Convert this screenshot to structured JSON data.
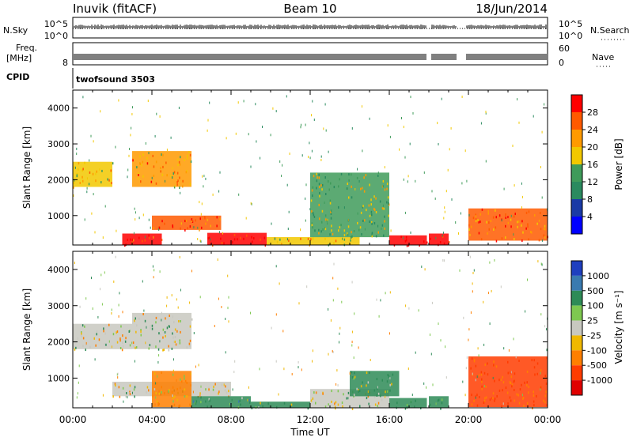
{
  "header": {
    "station": "Inuvik (fitACF)",
    "beam": "Beam 10",
    "date": "18/Jun/2014"
  },
  "strips": {
    "nsky_label": "N.Sky",
    "nsky_ticks": [
      "10^5",
      "10^0"
    ],
    "nsearch_label": "N.Search",
    "nsearch_ticks": [
      "10^5",
      "10^0"
    ],
    "freq_label": "Freq.",
    "freq_unit": "[MHz]",
    "freq_ticks": [
      "8"
    ],
    "nave_label": "Nave",
    "nave_ticks": [
      "60",
      "0"
    ],
    "cpid_label": "CPID",
    "cpid_value": "twofsound 3503"
  },
  "panels": {
    "ylabel": "Slant Range [km]",
    "yticks": [
      "4000",
      "3000",
      "2000",
      "1000"
    ],
    "xlabel": "Time UT",
    "xticks": [
      "00:00",
      "04:00",
      "08:00",
      "12:00",
      "16:00",
      "20:00",
      "00:00"
    ]
  },
  "power_scale": {
    "label": "Power [dB]",
    "ticks": [
      "28",
      "24",
      "20",
      "16",
      "12",
      "8",
      "4"
    ],
    "colors": [
      "#ff0000",
      "#ff5a00",
      "#ff9a00",
      "#f2c800",
      "#3f9b5a",
      "#2a8a5f",
      "#1a3aa6",
      "#0000ff"
    ]
  },
  "velocity_scale": {
    "label": "Velocity [m s⁻¹]",
    "ticks": [
      "1000",
      "500",
      "100",
      "25",
      "-25",
      "-100",
      "-500",
      "-1000"
    ],
    "colors": [
      "#1f3fbf",
      "#3a7ab0",
      "#2e8b57",
      "#7ec850",
      "#c8c8c0",
      "#f0b800",
      "#ff7f00",
      "#ff3c00",
      "#e00000"
    ]
  },
  "chart_data": [
    {
      "type": "heatmap",
      "title": "Beam 10",
      "xlabel": "Time UT",
      "ylabel": "Slant Range [km]",
      "x_range": [
        "00:00",
        "24:00"
      ],
      "ylim": [
        180,
        4500
      ],
      "colorbar": "Power [dB]",
      "colorbar_ticks": [
        4,
        8,
        12,
        16,
        20,
        24,
        28
      ],
      "regions": [
        {
          "t": [
            2.5,
            4.5
          ],
          "r": [
            180,
            500
          ],
          "value": 28
        },
        {
          "t": [
            6.8,
            9.8
          ],
          "r": [
            180,
            520
          ],
          "value": 28
        },
        {
          "t": [
            9.8,
            14.5
          ],
          "r": [
            180,
            400
          ],
          "value": 16
        },
        {
          "t": [
            16.0,
            17.9
          ],
          "r": [
            180,
            450
          ],
          "value": 28
        },
        {
          "t": [
            18.0,
            19.0
          ],
          "r": [
            180,
            500
          ],
          "value": 28
        },
        {
          "t": [
            20.0,
            24.0
          ],
          "r": [
            300,
            1200
          ],
          "value": 22
        },
        {
          "t": [
            0.0,
            2.0
          ],
          "r": [
            1800,
            2500
          ],
          "value": 16
        },
        {
          "t": [
            3.0,
            6.0
          ],
          "r": [
            1800,
            2800
          ],
          "value": 18
        },
        {
          "t": [
            4.0,
            7.5
          ],
          "r": [
            600,
            1000
          ],
          "value": 24
        },
        {
          "t": [
            12.0,
            16.0
          ],
          "r": [
            400,
            2200
          ],
          "value": 12
        }
      ]
    },
    {
      "type": "heatmap",
      "title": "",
      "xlabel": "Time UT",
      "ylabel": "Slant Range [km]",
      "x_range": [
        "00:00",
        "24:00"
      ],
      "ylim": [
        180,
        4500
      ],
      "colorbar": "Velocity [m s⁻¹]",
      "colorbar_ticks": [
        1000,
        500,
        100,
        25,
        -25,
        -100,
        -500,
        -1000
      ],
      "regions": [
        {
          "t": [
            0.0,
            3.0
          ],
          "r": [
            1800,
            2500
          ],
          "value": 0
        },
        {
          "t": [
            3.0,
            6.0
          ],
          "r": [
            1800,
            2800
          ],
          "value": 0
        },
        {
          "t": [
            2.0,
            8.0
          ],
          "r": [
            500,
            900
          ],
          "value": 0
        },
        {
          "t": [
            4.0,
            6.0
          ],
          "r": [
            200,
            1200
          ],
          "value": -100
        },
        {
          "t": [
            6.0,
            9.0
          ],
          "r": [
            180,
            500
          ],
          "value": 200
        },
        {
          "t": [
            9.0,
            12.0
          ],
          "r": [
            180,
            350
          ],
          "value": 100
        },
        {
          "t": [
            12.0,
            16.0
          ],
          "r": [
            180,
            700
          ],
          "value": 0
        },
        {
          "t": [
            16.0,
            17.9
          ],
          "r": [
            180,
            450
          ],
          "value": 200
        },
        {
          "t": [
            18.0,
            19.0
          ],
          "r": [
            180,
            500
          ],
          "value": 100
        },
        {
          "t": [
            20.0,
            24.0
          ],
          "r": [
            200,
            1600
          ],
          "value": -300
        },
        {
          "t": [
            14.0,
            16.5
          ],
          "r": [
            500,
            1200
          ],
          "value": 100
        }
      ]
    }
  ]
}
